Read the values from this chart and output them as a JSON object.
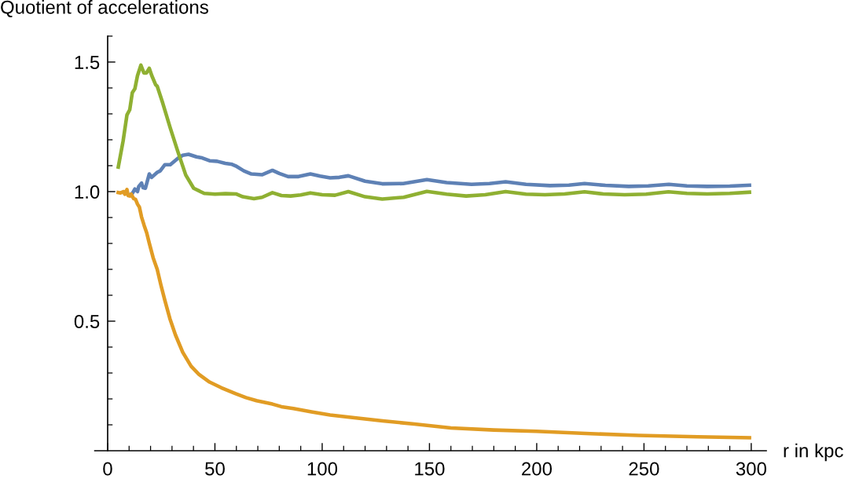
{
  "chart_data": {
    "type": "line",
    "xlabel": "r in kpc",
    "ylabel": "Quotient of accelerations",
    "xlim": [
      -6,
      307
    ],
    "ylim": [
      0,
      1.6
    ],
    "xticks": [
      0,
      {
        "value": 10,
        "label": null
      },
      {
        "value": 20,
        "label": null
      },
      {
        "value": 30,
        "label": null
      },
      {
        "value": 40,
        "label": null
      },
      50,
      {
        "value": 60,
        "label": null
      },
      {
        "value": 70,
        "label": null
      },
      {
        "value": 80,
        "label": null
      },
      {
        "value": 90,
        "label": null
      },
      100,
      {
        "value": 110,
        "label": null
      },
      {
        "value": 120,
        "label": null
      },
      {
        "value": 130,
        "label": null
      },
      {
        "value": 140,
        "label": null
      },
      150,
      {
        "value": 160,
        "label": null
      },
      {
        "value": 170,
        "label": null
      },
      {
        "value": 180,
        "label": null
      },
      {
        "value": 190,
        "label": null
      },
      200,
      {
        "value": 210,
        "label": null
      },
      {
        "value": 220,
        "label": null
      },
      {
        "value": 230,
        "label": null
      },
      {
        "value": 240,
        "label": null
      },
      250,
      {
        "value": 260,
        "label": null
      },
      {
        "value": 270,
        "label": null
      },
      {
        "value": 280,
        "label": null
      },
      {
        "value": 290,
        "label": null
      },
      300
    ],
    "yticks": [
      {
        "value": 0.1,
        "label": null
      },
      {
        "value": 0.2,
        "label": null
      },
      {
        "value": 0.3,
        "label": null
      },
      {
        "value": 0.4,
        "label": null
      },
      0.5,
      {
        "value": 0.6,
        "label": null
      },
      {
        "value": 0.7,
        "label": null
      },
      {
        "value": 0.8,
        "label": null
      },
      {
        "value": 0.9,
        "label": null
      },
      {
        "value": 1,
        "label": "1.0"
      },
      {
        "value": 1.1,
        "label": null
      },
      {
        "value": 1.2,
        "label": null
      },
      {
        "value": 1.3,
        "label": null
      },
      {
        "value": 1.4,
        "label": null
      },
      1.5,
      {
        "value": 1.6,
        "label": null
      }
    ],
    "grid": false,
    "marker": "none",
    "line_style": "solid",
    "series": [
      {
        "color": "#5e81b5",
        "x": [
          10.3,
          11.5,
          12.7,
          13.9,
          14.5,
          15.8,
          16.5,
          17.6,
          19.4,
          20.5,
          23.1,
          24.5,
          26.7,
          29.2,
          32.8,
          35,
          37.7,
          41.4,
          44,
          47.5,
          51,
          54.8,
          58,
          59.7,
          63.5,
          67,
          71.9,
          76.8,
          80,
          84.1,
          89,
          94.5,
          99,
          103.7,
          108,
          112.2,
          120,
          128,
          137.8,
          148.8,
          158,
          169.6,
          178,
          185.5,
          195,
          206.2,
          215,
          222.3,
          232,
          242.9,
          252,
          261.6,
          270,
          279.5,
          290,
          300
        ],
        "values": [
          0.988,
          0.993,
          1.01,
          1.0,
          1.02,
          1.033,
          1.015,
          1.013,
          1.068,
          1.055,
          1.074,
          1.08,
          1.104,
          1.104,
          1.129,
          1.14,
          1.144,
          1.134,
          1.13,
          1.119,
          1.117,
          1.109,
          1.105,
          1.099,
          1.08,
          1.068,
          1.065,
          1.082,
          1.07,
          1.058,
          1.058,
          1.068,
          1.06,
          1.053,
          1.055,
          1.061,
          1.04,
          1.03,
          1.031,
          1.046,
          1.035,
          1.028,
          1.031,
          1.038,
          1.028,
          1.023,
          1.025,
          1.031,
          1.024,
          1.02,
          1.022,
          1.028,
          1.022,
          1.02,
          1.021,
          1.025
        ]
      },
      {
        "color": "#e19c24",
        "x": [
          4.1,
          6,
          7.5,
          8,
          9,
          9.5,
          10.3,
          11,
          12.1,
          13,
          13.9,
          14.8,
          15.8,
          17,
          18.2,
          19.4,
          21.2,
          23.1,
          24.8,
          26.7,
          29,
          31.6,
          35,
          38.9,
          42.5,
          47.5,
          53,
          59.7,
          64.5,
          69.4,
          76.8,
          81,
          86.6,
          95,
          103.7,
          115,
          128.2,
          143,
          160,
          180,
          199.8,
          225,
          247.5,
          275,
          300
        ],
        "values": [
          0.998,
          0.995,
          1.0,
          0.99,
          1.008,
          0.985,
          0.983,
          0.99,
          0.973,
          0.97,
          0.952,
          0.94,
          0.902,
          0.87,
          0.841,
          0.801,
          0.745,
          0.7,
          0.64,
          0.579,
          0.51,
          0.447,
          0.38,
          0.326,
          0.295,
          0.265,
          0.243,
          0.22,
          0.205,
          0.193,
          0.18,
          0.17,
          0.163,
          0.15,
          0.138,
          0.127,
          0.115,
          0.103,
          0.088,
          0.08,
          0.075,
          0.066,
          0.059,
          0.054,
          0.05
        ]
      },
      {
        "color": "#8fb032",
        "x": [
          4.8,
          7.2,
          9,
          10.3,
          11.5,
          12.7,
          13.9,
          15.5,
          16.9,
          18.1,
          19.4,
          20.6,
          22.4,
          23.1,
          25.5,
          29.2,
          32.7,
          36.4,
          40.1,
          45,
          50,
          54.9,
          59.8,
          63,
          68.2,
          72,
          76.8,
          81,
          85.3,
          90,
          94.5,
          100,
          106,
          112.2,
          120,
          128,
          138,
          148.8,
          158,
          167.1,
          176,
          185.5,
          195,
          203.8,
          213,
          222.3,
          231,
          241,
          251,
          261.4,
          270,
          279.5,
          290,
          300
        ],
        "values": [
          1.088,
          1.195,
          1.296,
          1.316,
          1.382,
          1.397,
          1.447,
          1.488,
          1.458,
          1.458,
          1.476,
          1.447,
          1.412,
          1.407,
          1.346,
          1.245,
          1.155,
          1.064,
          1.013,
          0.993,
          0.99,
          0.992,
          0.991,
          0.98,
          0.973,
          0.978,
          0.996,
          0.985,
          0.983,
          0.987,
          0.995,
          0.988,
          0.986,
          1.0,
          0.98,
          0.971,
          0.978,
          1.001,
          0.99,
          0.983,
          0.988,
          1.0,
          0.99,
          0.988,
          0.991,
          0.999,
          0.991,
          0.988,
          0.99,
          0.999,
          0.993,
          0.991,
          0.993,
          0.998
        ]
      }
    ]
  }
}
